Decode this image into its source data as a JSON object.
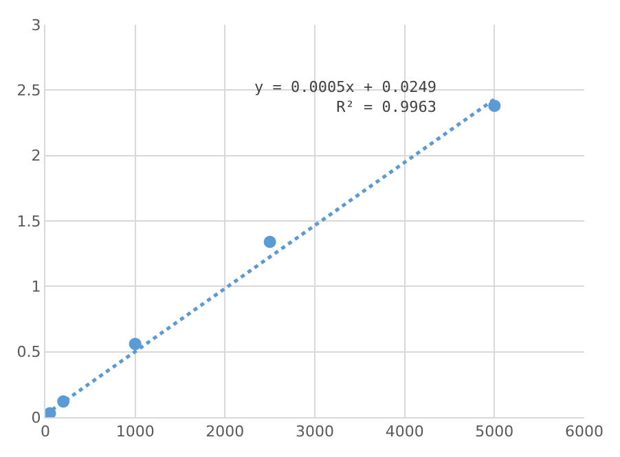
{
  "chart_data": {
    "type": "scatter",
    "x": [
      50,
      200,
      1000,
      2500,
      5000
    ],
    "series": [
      {
        "color": "#5b9bd5",
        "values": [
          0.03,
          0.12,
          0.56,
          1.34,
          2.38
        ],
        "marker": "circle"
      },
      {
        "type": "line",
        "color": "#5b9bd5",
        "x": [
          0,
          5000
        ],
        "values": [
          0.02,
          2.43
        ],
        "line_style": "dotted",
        "marker": "none"
      }
    ],
    "annotations": [
      "y = 0.0005x + 0.0249\nR² = 0.9963"
    ],
    "xlim": [
      0,
      6000
    ],
    "xticks": [
      0,
      1000,
      2000,
      3000,
      4000,
      5000,
      6000
    ],
    "ylim": [
      0,
      3
    ],
    "yticks": [
      0,
      0.5,
      1,
      1.5,
      2,
      2.5,
      3
    ],
    "grid": true
  }
}
